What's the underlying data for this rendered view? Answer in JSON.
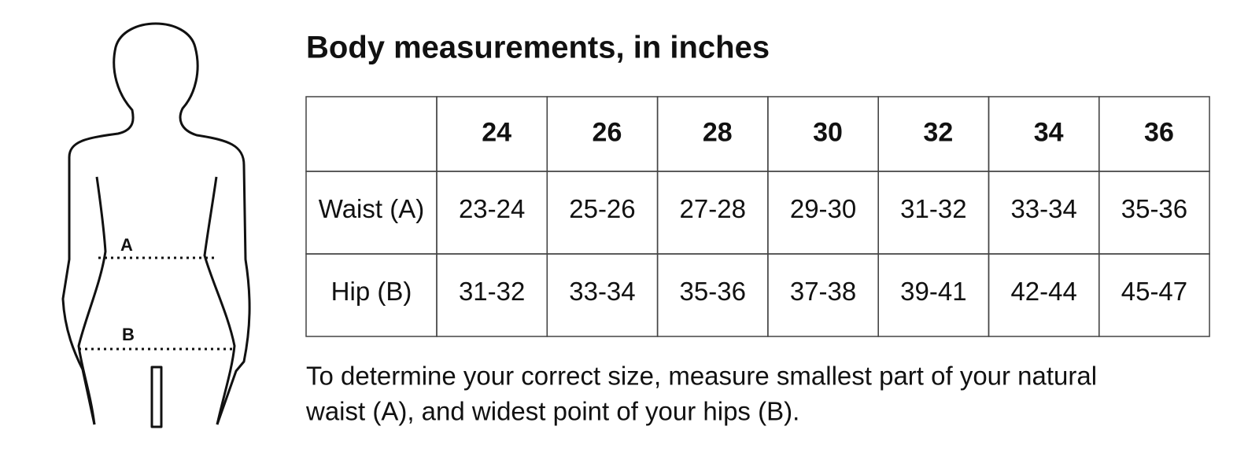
{
  "figure": {
    "labels": [
      "A",
      "B"
    ]
  },
  "title": "Body measurements, in inches",
  "table": {
    "header": [
      "24",
      "26",
      "28",
      "30",
      "32",
      "34",
      "36"
    ],
    "rows": [
      [
        "Waist (A)",
        "23-24",
        "25-26",
        "27-28",
        "29-30",
        "31-32",
        "33-34",
        "35-36"
      ],
      [
        "Hip (B)",
        "31-32",
        "33-34",
        "35-36",
        "37-38",
        "39-41",
        "42-44",
        "45-47"
      ]
    ]
  },
  "note": [
    "To determine your correct size, measure smallest part of your natural",
    "waist (A), and widest point of your hips (B)."
  ]
}
